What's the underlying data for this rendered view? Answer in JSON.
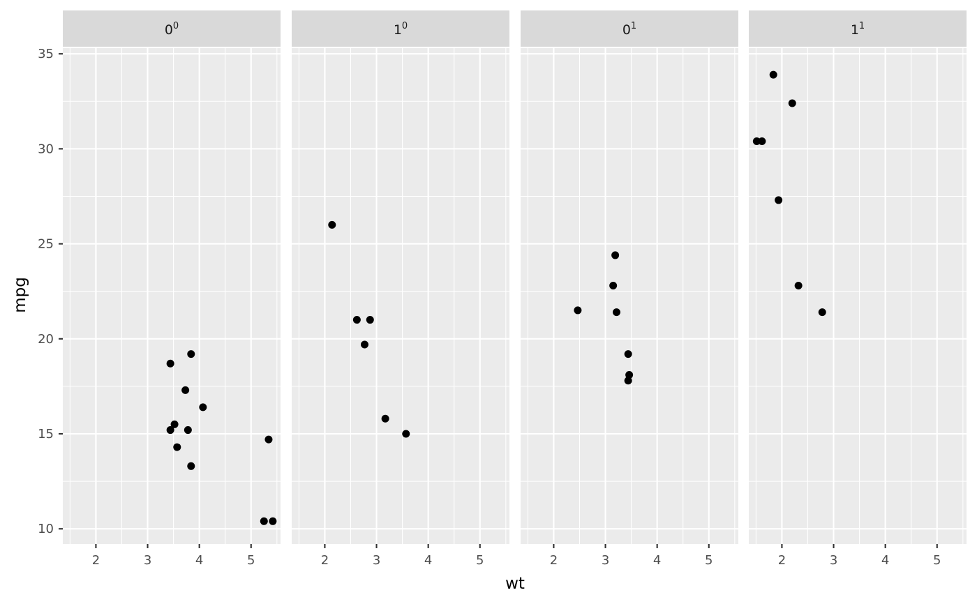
{
  "chart_data": {
    "type": "scatter",
    "xlabel": "wt",
    "ylabel": "mpg",
    "xlim": [
      1.36,
      5.57
    ],
    "ylim": [
      9.2,
      35.3
    ],
    "x_ticks": [
      2,
      3,
      4,
      5
    ],
    "y_ticks": [
      10,
      15,
      20,
      25,
      30,
      35
    ],
    "grid": true,
    "legend": "none",
    "point_color": "#000000",
    "panels": [
      {
        "strip_base": "0",
        "strip_sup": "0",
        "points": [
          {
            "x": 3.44,
            "y": 18.7
          },
          {
            "x": 3.84,
            "y": 19.2
          },
          {
            "x": 3.73,
            "y": 17.3
          },
          {
            "x": 4.07,
            "y": 16.4
          },
          {
            "x": 3.52,
            "y": 15.5
          },
          {
            "x": 3.44,
            "y": 15.2
          },
          {
            "x": 3.78,
            "y": 15.2
          },
          {
            "x": 3.57,
            "y": 14.3
          },
          {
            "x": 3.84,
            "y": 13.3
          },
          {
            "x": 5.34,
            "y": 14.7
          },
          {
            "x": 5.25,
            "y": 10.4
          },
          {
            "x": 5.42,
            "y": 10.4
          }
        ]
      },
      {
        "strip_base": "1",
        "strip_sup": "0",
        "points": [
          {
            "x": 2.14,
            "y": 26.0
          },
          {
            "x": 2.62,
            "y": 21.0
          },
          {
            "x": 2.875,
            "y": 21.0
          },
          {
            "x": 2.77,
            "y": 19.7
          },
          {
            "x": 3.17,
            "y": 15.8
          },
          {
            "x": 3.57,
            "y": 15.0
          }
        ]
      },
      {
        "strip_base": "0",
        "strip_sup": "1",
        "points": [
          {
            "x": 3.19,
            "y": 24.4
          },
          {
            "x": 3.15,
            "y": 22.8
          },
          {
            "x": 2.465,
            "y": 21.5
          },
          {
            "x": 3.215,
            "y": 21.4
          },
          {
            "x": 3.44,
            "y": 19.2
          },
          {
            "x": 3.46,
            "y": 18.1
          },
          {
            "x": 3.44,
            "y": 17.8
          }
        ]
      },
      {
        "strip_base": "1",
        "strip_sup": "1",
        "points": [
          {
            "x": 1.835,
            "y": 33.9
          },
          {
            "x": 2.2,
            "y": 32.4
          },
          {
            "x": 1.615,
            "y": 30.4
          },
          {
            "x": 1.513,
            "y": 30.4
          },
          {
            "x": 1.935,
            "y": 27.3
          },
          {
            "x": 2.32,
            "y": 22.8
          },
          {
            "x": 2.78,
            "y": 21.4
          }
        ]
      }
    ]
  }
}
